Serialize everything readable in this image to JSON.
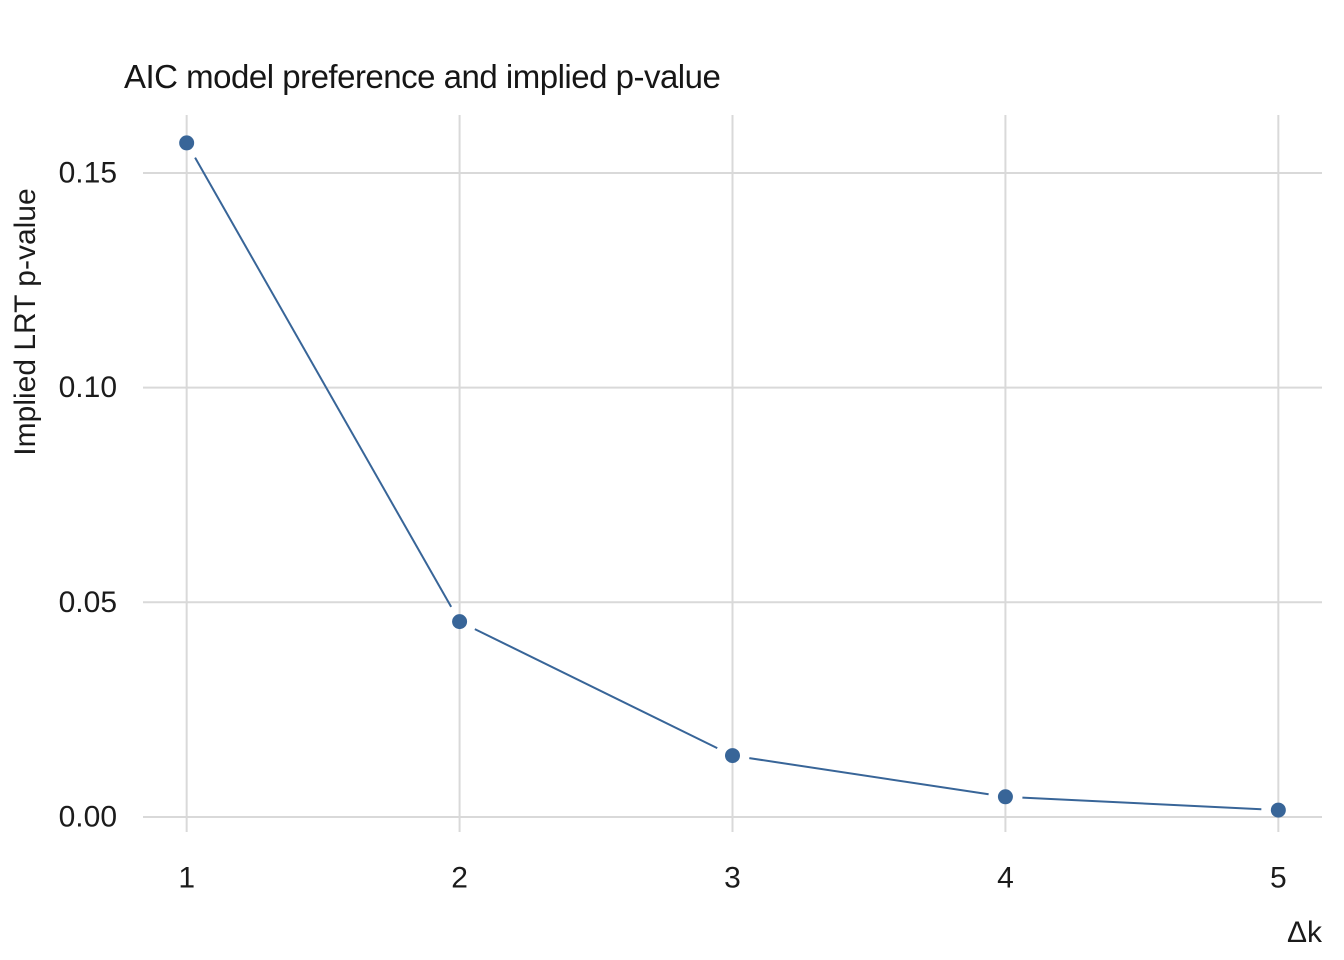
{
  "chart_data": {
    "type": "line",
    "title": "AIC model preference and implied p-value",
    "xlabel": "Δk",
    "ylabel": "Implied LRT p-value",
    "x": [
      1,
      2,
      3,
      4,
      5
    ],
    "y": [
      0.157,
      0.0455,
      0.0143,
      0.0047,
      0.0016
    ],
    "x_ticks": [
      1,
      2,
      3,
      4,
      5
    ],
    "x_tick_labels": [
      "1",
      "2",
      "3",
      "4",
      "5"
    ],
    "y_ticks": [
      0.0,
      0.05,
      0.1,
      0.15
    ],
    "y_tick_labels": [
      "0.00",
      "0.05",
      "0.10",
      "0.15"
    ],
    "xlim": [
      0.84,
      5.16
    ],
    "ylim": [
      -0.0035,
      0.1635
    ],
    "grid": true,
    "legend": false,
    "marker": "circle",
    "colors": {
      "series": "#386598",
      "gridline": "#d9d9d9",
      "text": "#1b1b1b",
      "background": "#ffffff"
    }
  }
}
